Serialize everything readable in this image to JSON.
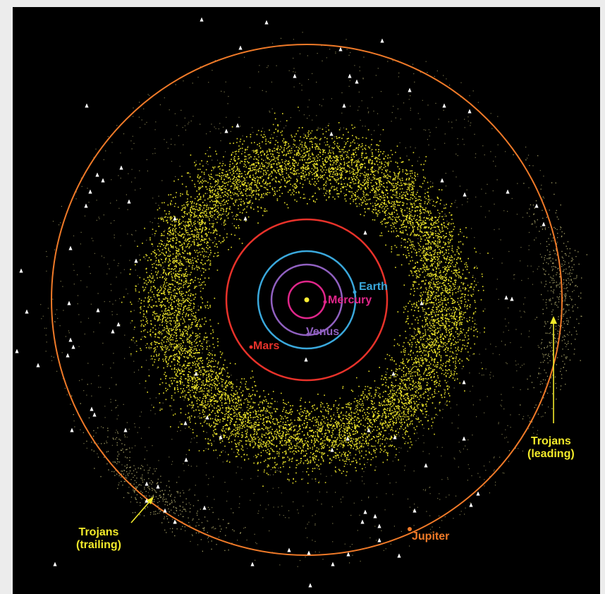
{
  "colors": {
    "background": "#000000",
    "asteroid_main_belt": "#f2ea2a",
    "asteroid_sparse": "#c9c27a",
    "jupiter": "#f07a28",
    "mars": "#e8322a",
    "earth": "#3aa8dc",
    "venus": "#9060c0",
    "mercury": "#e0268a",
    "sun": "#ffee33",
    "trojans": "#f2ea2a",
    "comet_markers": "#ffffff"
  },
  "labels": {
    "earth": "Earth",
    "mercury": "Mercury",
    "venus": "Venus",
    "mars": "Mars",
    "jupiter": "Jupiter",
    "trojans_leading_line1": "Trojans",
    "trojans_leading_line2": "(leading)",
    "trojans_trailing_line1": "Trojans",
    "trojans_trailing_line2": "(trailing)"
  },
  "icons": {
    "sun": "sun-icon",
    "comet": "comet-marker-icon",
    "arrow": "arrow-icon"
  }
}
